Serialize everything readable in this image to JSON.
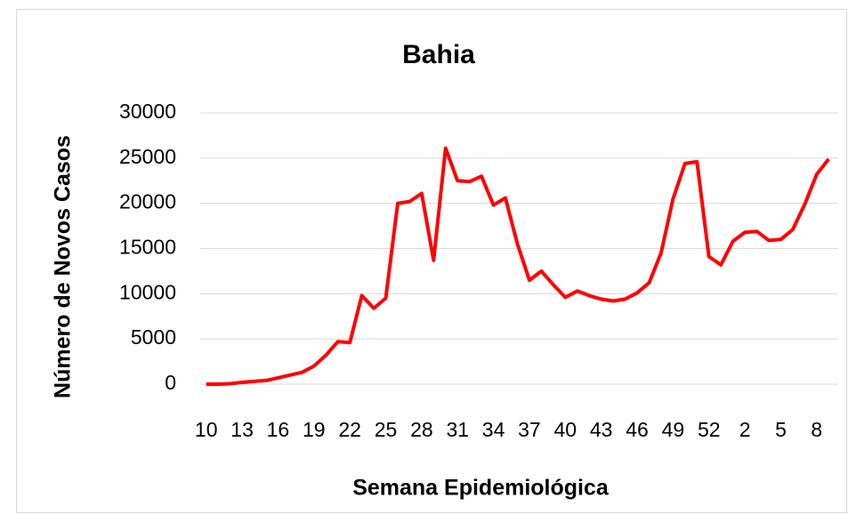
{
  "chart_data": {
    "type": "line",
    "title": "Bahia",
    "x_label": "Semana Epidemiológica",
    "y_label": "Número de Novos Casos",
    "categories": [
      "10",
      null,
      null,
      "13",
      null,
      null,
      "16",
      null,
      null,
      "19",
      null,
      null,
      "22",
      null,
      null,
      "25",
      null,
      null,
      "28",
      null,
      null,
      "31",
      null,
      null,
      "34",
      null,
      null,
      "37",
      null,
      null,
      "40",
      null,
      null,
      "43",
      null,
      null,
      "46",
      null,
      null,
      "49",
      null,
      null,
      "52",
      null,
      null,
      "2",
      null,
      null,
      "5",
      null,
      null,
      "8",
      null
    ],
    "series": [
      {
        "name": "Bahia",
        "color": "#ff0000",
        "values": [
          0,
          0,
          50,
          200,
          300,
          400,
          700,
          1000,
          1300,
          2000,
          3200,
          4700,
          4600,
          9800,
          8400,
          9500,
          20000,
          20200,
          21100,
          13700,
          26100,
          22500,
          22400,
          23000,
          19800,
          20600,
          15500,
          11500,
          12500,
          11000,
          9600,
          10300,
          9800,
          9400,
          9200,
          9400,
          10100,
          11200,
          14500,
          20500,
          24400,
          24600,
          14100,
          13200,
          15800,
          16800,
          16900,
          15900,
          16000,
          17100,
          19900,
          23200,
          24900
        ]
      }
    ],
    "ylim": [
      0,
      30000
    ],
    "yticks": [
      0,
      5000,
      10000,
      15000,
      20000,
      25000,
      30000
    ],
    "grid": true
  }
}
